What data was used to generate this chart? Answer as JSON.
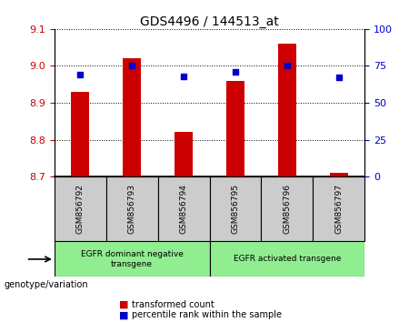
{
  "title": "GDS4496 / 144513_at",
  "samples": [
    "GSM856792",
    "GSM856793",
    "GSM856794",
    "GSM856795",
    "GSM856796",
    "GSM856797"
  ],
  "transformed_count": [
    8.93,
    9.02,
    8.82,
    8.96,
    9.06,
    8.71
  ],
  "percentile_rank": [
    69,
    75,
    68,
    71,
    75,
    67
  ],
  "ylim_left": [
    8.7,
    9.1
  ],
  "ylim_right": [
    0,
    100
  ],
  "yticks_left": [
    8.7,
    8.8,
    8.9,
    9.0,
    9.1
  ],
  "yticks_right": [
    0,
    25,
    50,
    75,
    100
  ],
  "bar_color": "#cc0000",
  "dot_color": "#0000cc",
  "bar_bottom": 8.7,
  "group1_label": "EGFR dominant negative\ntransgene",
  "group2_label": "EGFR activated transgene",
  "group1_indices": [
    0,
    1,
    2
  ],
  "group2_indices": [
    3,
    4,
    5
  ],
  "xlabel": "genotype/variation",
  "legend_bar": "transformed count",
  "legend_dot": "percentile rank within the sample",
  "group1_color": "#90ee90",
  "group2_color": "#90ee90",
  "sample_box_color": "#cccccc",
  "tick_label_color_left": "#cc0000",
  "tick_label_color_right": "#0000cc"
}
